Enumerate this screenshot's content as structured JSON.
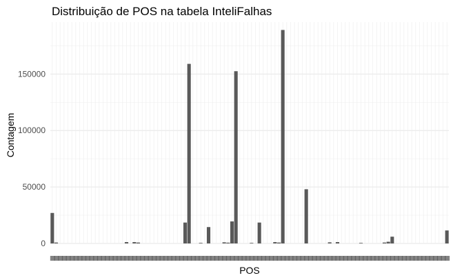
{
  "chart_data": {
    "type": "bar",
    "title": "Distribuição de POS na tabela InteliFalhas",
    "xlabel": "POS",
    "ylabel": "Contagem",
    "ylim": [
      0,
      196000
    ],
    "yticks": [
      0,
      50000,
      100000,
      150000
    ],
    "ytick_labels": [
      "0",
      "50000",
      "100000",
      "150000"
    ],
    "grid": true,
    "legend": "none",
    "bar_color": "#595959",
    "values": [
      27000,
      800,
      0,
      0,
      0,
      0,
      0,
      0,
      0,
      0,
      0,
      0,
      0,
      0,
      0,
      0,
      0,
      0,
      0,
      1200,
      0,
      1200,
      800,
      0,
      0,
      0,
      0,
      0,
      0,
      0,
      0,
      0,
      0,
      0,
      18500,
      159000,
      0,
      0,
      500,
      0,
      14500,
      0,
      0,
      0,
      1000,
      700,
      19500,
      152500,
      0,
      0,
      0,
      500,
      0,
      18500,
      0,
      0,
      0,
      1200,
      800,
      189000,
      0,
      0,
      0,
      0,
      0,
      48000,
      0,
      0,
      0,
      0,
      0,
      1000,
      0,
      1200,
      0,
      0,
      0,
      0,
      0,
      500,
      0,
      0,
      0,
      0,
      0,
      800,
      1500,
      6000,
      0,
      0,
      0,
      0,
      0,
      0,
      0,
      0,
      0,
      0,
      0,
      0,
      0,
      11500
    ]
  }
}
